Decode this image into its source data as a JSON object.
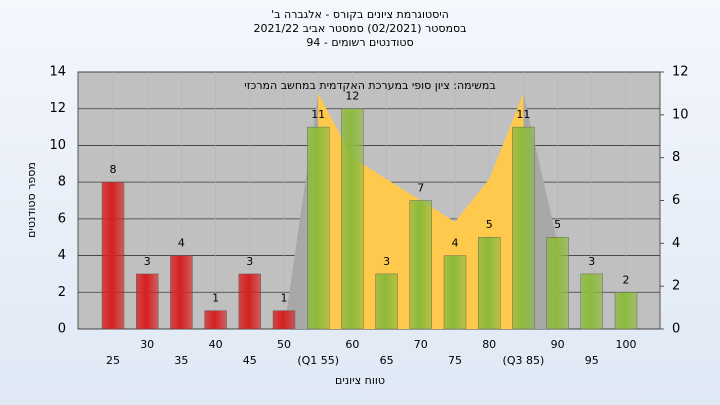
{
  "chart_data": {
    "type": "bar",
    "title": "היסטוגרמת ציונים בקורס - אלגברה ב'",
    "subtitle": [
      "בסמסטר (02/2021) סמסטר אביב 2021/22",
      "סטודנטים רשומים - 94"
    ],
    "annotation": "במשימה: ציון סופי במערכת האקדמית במחשב המרכזי",
    "xlabel": "טווח ציונים",
    "ylabel": "מספר סטודנטים",
    "categories": [
      "25",
      "30",
      "35",
      "40",
      "45",
      "50",
      "(Q1 55)",
      "60",
      "65",
      "70",
      "75",
      "80",
      "(Q3 85)",
      "90",
      "95",
      "100"
    ],
    "series": [
      {
        "values": [
          8,
          3,
          4,
          1,
          3,
          1,
          11,
          12,
          3,
          7,
          4,
          5,
          11,
          5,
          3,
          2
        ],
        "colors": [
          "#d42020",
          "#d42020",
          "#d42020",
          "#d42020",
          "#d42020",
          "#d42020",
          "#8dba3c",
          "#8dba3c",
          "#8dba3c",
          "#8dba3c",
          "#8dba3c",
          "#8dba3c",
          "#8dba3c",
          "#8dba3c",
          "#8dba3c",
          "#8dba3c"
        ]
      },
      {
        "type": "area",
        "axis": "y2",
        "color": "#a8a8a8",
        "values": [
          null,
          null,
          null,
          null,
          null,
          0,
          11,
          null,
          null,
          null,
          null,
          null,
          11,
          4,
          null,
          null
        ]
      },
      {
        "type": "area",
        "axis": "y2",
        "color": "#ffc94d",
        "values": [
          null,
          null,
          null,
          null,
          null,
          null,
          11,
          8,
          7,
          6,
          5,
          7,
          11,
          null,
          null,
          null
        ]
      }
    ],
    "ylim": [
      0,
      14
    ],
    "yticks": [
      0,
      2,
      4,
      6,
      8,
      10,
      12,
      14
    ],
    "y2lim": [
      0,
      12
    ],
    "y2ticks": [
      0,
      2,
      4,
      6,
      8,
      10,
      12
    ],
    "grid": true
  }
}
